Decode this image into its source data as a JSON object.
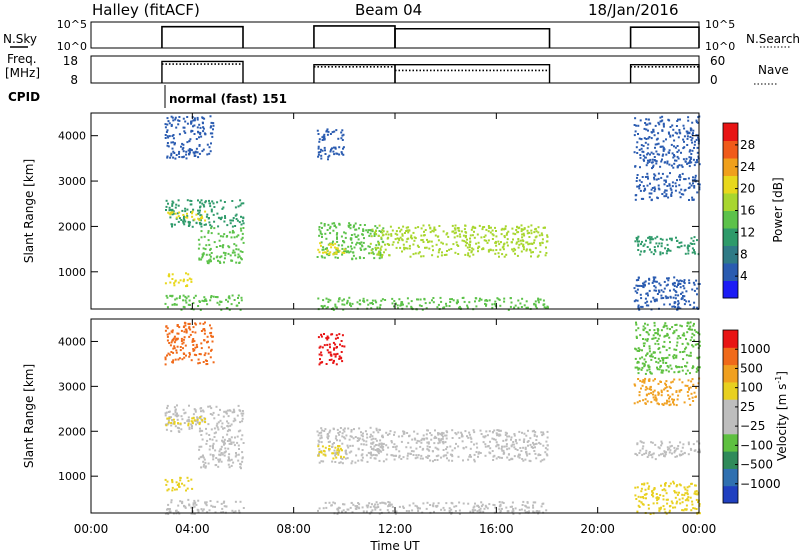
{
  "header": {
    "station": "Halley (fitACF)",
    "beam": "Beam 04",
    "date": "18/Jan/2016"
  },
  "side_labels": {
    "nsky": "N.Sky",
    "freq": "Freq.",
    "freq_unit": "[MHz]",
    "cpid": "CPID",
    "nsearch": "N.Search",
    "nave": "Nave"
  },
  "cpid_text": "normal (fast) 151",
  "chart_data": {
    "type": "heatmap",
    "x_axis": {
      "label": "Time UT",
      "range_hours": [
        0,
        24
      ],
      "tick_labels": [
        "00:00",
        "04:00",
        "08:00",
        "12:00",
        "16:00",
        "20:00",
        "00:00"
      ],
      "tick_hours": [
        0,
        4,
        8,
        12,
        16,
        20,
        24
      ]
    },
    "operating_intervals_hours": [
      [
        2.8,
        6.0
      ],
      [
        8.8,
        18.1
      ],
      [
        21.3,
        24.0
      ]
    ],
    "noise_panel": {
      "left_ticks": [
        "10^5",
        "10^0"
      ],
      "right_ticks": [
        "10^5",
        "10^0"
      ],
      "segments": [
        {
          "start": 2.8,
          "end": 6.0,
          "level": 0.82
        },
        {
          "start": 8.8,
          "end": 12.0,
          "level": 0.85
        },
        {
          "start": 12.0,
          "end": 18.1,
          "level": 0.74
        },
        {
          "start": 21.3,
          "end": 24.0,
          "level": 0.8
        }
      ]
    },
    "freq_panel": {
      "left_ticks": [
        8,
        18
      ],
      "right_ticks": [
        0,
        60
      ],
      "segments": [
        {
          "start": 2.8,
          "end": 6.0,
          "freq_mhz": 16.0,
          "nave": 42
        },
        {
          "start": 8.8,
          "end": 12.0,
          "freq_mhz": 14.8,
          "nave": 36
        },
        {
          "start": 12.0,
          "end": 18.1,
          "freq_mhz": 14.8,
          "nave": 28
        },
        {
          "start": 21.3,
          "end": 24.0,
          "freq_mhz": 14.8,
          "nave": 36
        }
      ]
    },
    "power_panel": {
      "ylabel": "Slant Range [km]",
      "y_ticks": [
        1000,
        2000,
        3000,
        4000
      ],
      "ylim": [
        180,
        4500
      ],
      "colorbar_label": "Power [dB]",
      "colorbar_ticks": [
        4,
        8,
        12,
        16,
        20,
        24,
        28
      ],
      "colorbar_colors": [
        "#1c1cf5",
        "#2a5bb0",
        "#2f7a86",
        "#2e9a6a",
        "#5cc24a",
        "#a8d62e",
        "#e8d81c",
        "#f0a01c",
        "#f05a1a",
        "#e81414"
      ]
    },
    "velocity_panel": {
      "ylabel": "Slant Range [km]",
      "y_ticks": [
        1000,
        2000,
        3000,
        4000
      ],
      "ylim": [
        180,
        4500
      ],
      "colorbar_label": "Velocity [m s",
      "colorbar_unit_exp": "-1",
      "colorbar_unit_close": "]",
      "colorbar_ticks": [
        "1000",
        "500",
        "100",
        "25",
        "−25",
        "−100",
        "−500",
        "−1000"
      ],
      "colorbar_colors": [
        "#2040c0",
        "#3070b0",
        "#2f8a5a",
        "#5ec040",
        "#bdbdbd",
        "#bdbdbd",
        "#e8d020",
        "#f0a020",
        "#f06a1a",
        "#e81414"
      ]
    },
    "scatter_bands": [
      {
        "t0": 2.9,
        "t1": 6.0,
        "r0": 2000,
        "r1": 2600,
        "color": "#2e9a6a",
        "vcolor": "#bdbdbd"
      },
      {
        "t0": 2.9,
        "t1": 4.5,
        "r0": 2150,
        "r1": 2350,
        "color": "#e8d81c",
        "vcolor": "#e8d020"
      },
      {
        "t0": 4.2,
        "t1": 6.0,
        "r0": 1200,
        "r1": 2000,
        "color": "#5cc24a",
        "vcolor": "#bdbdbd"
      },
      {
        "t0": 2.9,
        "t1": 4.0,
        "r0": 700,
        "r1": 1000,
        "color": "#e8d81c",
        "vcolor": "#e8d020"
      },
      {
        "t0": 2.9,
        "t1": 6.0,
        "r0": 180,
        "r1": 500,
        "color": "#5cc24a",
        "vcolor": "#bdbdbd"
      },
      {
        "t0": 2.9,
        "t1": 4.8,
        "r0": 3500,
        "r1": 4450,
        "color": "#2a5bb0",
        "vcolor": "#f06a1a"
      },
      {
        "t0": 8.9,
        "t1": 11.5,
        "r0": 1300,
        "r1": 2100,
        "color": "#5cc24a",
        "vcolor": "#bdbdbd"
      },
      {
        "t0": 8.9,
        "t1": 10.0,
        "r0": 1400,
        "r1": 1700,
        "color": "#e8d81c",
        "vcolor": "#e8d020"
      },
      {
        "t0": 11.0,
        "t1": 18.0,
        "r0": 1350,
        "r1": 2050,
        "color": "#a8d62e",
        "vcolor": "#bdbdbd"
      },
      {
        "t0": 8.9,
        "t1": 18.0,
        "r0": 180,
        "r1": 450,
        "color": "#5cc24a",
        "vcolor": "#bdbdbd"
      },
      {
        "t0": 8.9,
        "t1": 10.0,
        "r0": 3500,
        "r1": 4200,
        "color": "#2a5bb0",
        "vcolor": "#e81414"
      },
      {
        "t0": 21.4,
        "t1": 24.0,
        "r0": 2600,
        "r1": 3200,
        "color": "#2a5bb0",
        "vcolor": "#f0a020"
      },
      {
        "t0": 21.4,
        "t1": 24.0,
        "r0": 1400,
        "r1": 1800,
        "color": "#2e9a6a",
        "vcolor": "#bdbdbd"
      },
      {
        "t0": 21.4,
        "t1": 24.0,
        "r0": 180,
        "r1": 900,
        "color": "#2a5bb0",
        "vcolor": "#e8d020"
      },
      {
        "t0": 21.4,
        "t1": 24.0,
        "r0": 3300,
        "r1": 4450,
        "color": "#2a5bb0",
        "vcolor": "#5ec040"
      }
    ]
  }
}
